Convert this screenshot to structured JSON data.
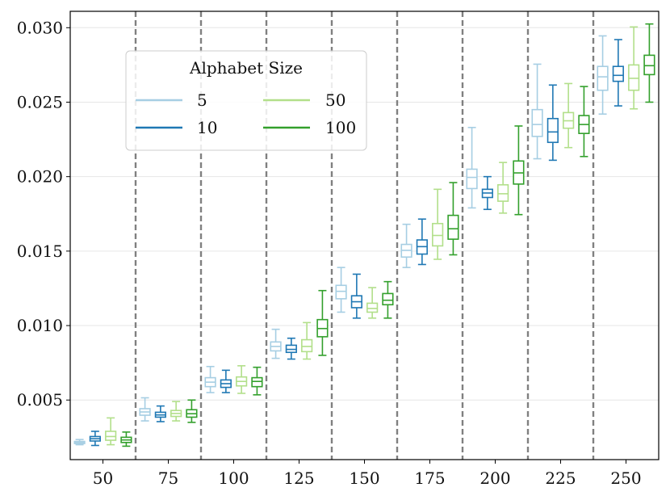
{
  "chart_data": {
    "type": "box",
    "title": "",
    "xlabel": "",
    "ylabel": "",
    "categories": [
      "50",
      "75",
      "100",
      "125",
      "150",
      "175",
      "200",
      "225",
      "250"
    ],
    "ylim": [
      0.001,
      0.0311
    ],
    "yticks": [
      "0.005",
      "0.010",
      "0.015",
      "0.020",
      "0.025",
      "0.030"
    ],
    "ytick_values": [
      0.005,
      0.01,
      0.015,
      0.02,
      0.025,
      0.03
    ],
    "grid": "horizontal",
    "category_separators": "dashed vertical lines between categories",
    "legend": {
      "title": "Alphabet Size",
      "placement": "upper-left",
      "entries": [
        "5",
        "10",
        "50",
        "100"
      ]
    },
    "series": [
      {
        "name": "5",
        "color": "#a6cee3",
        "boxes": [
          {
            "whislo": 0.002,
            "q1": 0.00208,
            "med": 0.00214,
            "q3": 0.00222,
            "whishi": 0.00235
          },
          {
            "whislo": 0.0036,
            "q1": 0.00398,
            "med": 0.0042,
            "q3": 0.00442,
            "whishi": 0.00515
          },
          {
            "whislo": 0.0055,
            "q1": 0.0059,
            "med": 0.0062,
            "q3": 0.0065,
            "whishi": 0.00725
          },
          {
            "whislo": 0.0078,
            "q1": 0.0083,
            "med": 0.0086,
            "q3": 0.0089,
            "whishi": 0.00975
          },
          {
            "whislo": 0.0109,
            "q1": 0.0118,
            "med": 0.0123,
            "q3": 0.0127,
            "whishi": 0.0139
          },
          {
            "whislo": 0.0139,
            "q1": 0.0146,
            "med": 0.01505,
            "q3": 0.01545,
            "whishi": 0.0168
          },
          {
            "whislo": 0.0179,
            "q1": 0.0192,
            "med": 0.01995,
            "q3": 0.0205,
            "whishi": 0.0233
          },
          {
            "whislo": 0.0212,
            "q1": 0.0227,
            "med": 0.0235,
            "q3": 0.0245,
            "whishi": 0.02755
          },
          {
            "whislo": 0.0242,
            "q1": 0.0258,
            "med": 0.0267,
            "q3": 0.0274,
            "whishi": 0.02945
          }
        ]
      },
      {
        "name": "10",
        "color": "#1f78b4",
        "boxes": [
          {
            "whislo": 0.00195,
            "q1": 0.00225,
            "med": 0.0024,
            "q3": 0.00255,
            "whishi": 0.0029
          },
          {
            "whislo": 0.00355,
            "q1": 0.00385,
            "med": 0.004,
            "q3": 0.00418,
            "whishi": 0.0046
          },
          {
            "whislo": 0.0055,
            "q1": 0.00585,
            "med": 0.0061,
            "q3": 0.00635,
            "whishi": 0.007
          },
          {
            "whislo": 0.00775,
            "q1": 0.0082,
            "med": 0.0084,
            "q3": 0.00868,
            "whishi": 0.00915
          },
          {
            "whislo": 0.0105,
            "q1": 0.0112,
            "med": 0.0116,
            "q3": 0.012,
            "whishi": 0.01345
          },
          {
            "whislo": 0.0141,
            "q1": 0.0148,
            "med": 0.0153,
            "q3": 0.01575,
            "whishi": 0.01715
          },
          {
            "whislo": 0.0178,
            "q1": 0.0186,
            "med": 0.0189,
            "q3": 0.01915,
            "whishi": 0.02
          },
          {
            "whislo": 0.0211,
            "q1": 0.0223,
            "med": 0.023,
            "q3": 0.0239,
            "whishi": 0.02615
          },
          {
            "whislo": 0.02475,
            "q1": 0.0264,
            "med": 0.0268,
            "q3": 0.0274,
            "whishi": 0.0292
          }
        ]
      },
      {
        "name": "50",
        "color": "#b2df8a",
        "boxes": [
          {
            "whislo": 0.002,
            "q1": 0.0023,
            "med": 0.00255,
            "q3": 0.0029,
            "whishi": 0.0038
          },
          {
            "whislo": 0.0036,
            "q1": 0.0039,
            "med": 0.0041,
            "q3": 0.0043,
            "whishi": 0.0049
          },
          {
            "whislo": 0.00545,
            "q1": 0.00595,
            "med": 0.00625,
            "q3": 0.00655,
            "whishi": 0.0073
          },
          {
            "whislo": 0.00775,
            "q1": 0.00825,
            "med": 0.0086,
            "q3": 0.00905,
            "whishi": 0.0102
          },
          {
            "whislo": 0.0105,
            "q1": 0.0109,
            "med": 0.01115,
            "q3": 0.0115,
            "whishi": 0.01255
          },
          {
            "whislo": 0.01445,
            "q1": 0.01535,
            "med": 0.01605,
            "q3": 0.01685,
            "whishi": 0.01915
          },
          {
            "whislo": 0.01755,
            "q1": 0.01835,
            "med": 0.01885,
            "q3": 0.01945,
            "whishi": 0.02095
          },
          {
            "whislo": 0.02195,
            "q1": 0.02325,
            "med": 0.02375,
            "q3": 0.0243,
            "whishi": 0.02625
          },
          {
            "whislo": 0.02455,
            "q1": 0.0258,
            "med": 0.0266,
            "q3": 0.0275,
            "whishi": 0.03005
          }
        ]
      },
      {
        "name": "100",
        "color": "#33a02c",
        "boxes": [
          {
            "whislo": 0.0019,
            "q1": 0.00215,
            "med": 0.00232,
            "q3": 0.0025,
            "whishi": 0.00285
          },
          {
            "whislo": 0.0035,
            "q1": 0.00385,
            "med": 0.00408,
            "q3": 0.00435,
            "whishi": 0.005
          },
          {
            "whislo": 0.00535,
            "q1": 0.0059,
            "med": 0.00625,
            "q3": 0.0065,
            "whishi": 0.0072
          },
          {
            "whislo": 0.008,
            "q1": 0.00925,
            "med": 0.0098,
            "q3": 0.0104,
            "whishi": 0.01235
          },
          {
            "whislo": 0.0105,
            "q1": 0.0114,
            "med": 0.0117,
            "q3": 0.01215,
            "whishi": 0.01295
          },
          {
            "whislo": 0.01475,
            "q1": 0.0158,
            "med": 0.0165,
            "q3": 0.0174,
            "whishi": 0.0196
          },
          {
            "whislo": 0.01745,
            "q1": 0.0195,
            "med": 0.02025,
            "q3": 0.02105,
            "whishi": 0.0234
          },
          {
            "whislo": 0.02135,
            "q1": 0.0229,
            "med": 0.0235,
            "q3": 0.0241,
            "whishi": 0.02605
          },
          {
            "whislo": 0.025,
            "q1": 0.02685,
            "med": 0.02745,
            "q3": 0.02815,
            "whishi": 0.03025
          }
        ]
      }
    ]
  }
}
